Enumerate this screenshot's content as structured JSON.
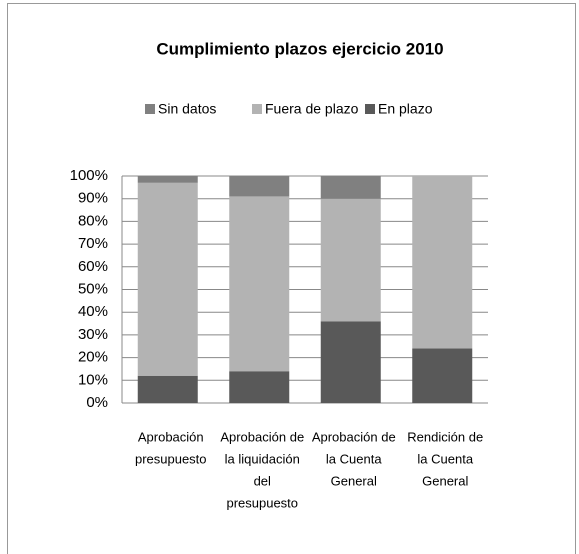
{
  "chart_data": {
    "type": "stacked-bar",
    "title": "Cumplimiento plazos ejercicio 2010",
    "categories": [
      [
        "Aprobación",
        "presupuesto"
      ],
      [
        "Aprobación de",
        "la liquidación",
        "del",
        "presupuesto"
      ],
      [
        "Aprobación de",
        "la Cuenta",
        "General"
      ],
      [
        "Rendición de",
        "la Cuenta",
        "General"
      ]
    ],
    "series": [
      {
        "name": "En plazo",
        "color": "#595959",
        "values": [
          12,
          14,
          36,
          24
        ]
      },
      {
        "name": "Fuera de plazo",
        "color": "#b3b3b3",
        "values": [
          85,
          77,
          54,
          76
        ]
      },
      {
        "name": "Sin datos",
        "color": "#808080",
        "values": [
          3,
          9,
          10,
          0
        ]
      }
    ],
    "legend_order": [
      "Sin datos",
      "Fuera de plazo",
      "En plazo"
    ],
    "ylim": [
      0,
      100
    ],
    "yticks": [
      {
        "value": 0,
        "label": "0%"
      },
      {
        "value": 10,
        "label": "10%"
      },
      {
        "value": 20,
        "label": "20%"
      },
      {
        "value": 30,
        "label": "30%"
      },
      {
        "value": 40,
        "label": "40%"
      },
      {
        "value": 50,
        "label": "50%"
      },
      {
        "value": 60,
        "label": "60%"
      },
      {
        "value": 70,
        "label": "70%"
      },
      {
        "value": 80,
        "label": "80%"
      },
      {
        "value": 90,
        "label": "90%"
      },
      {
        "value": 100,
        "label": "100%"
      }
    ],
    "grid": true,
    "legend": "top"
  }
}
